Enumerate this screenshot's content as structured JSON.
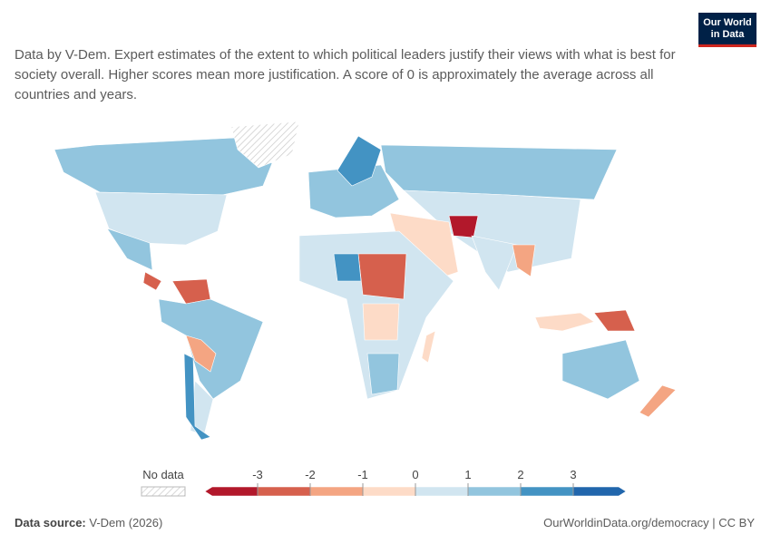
{
  "logo": [
    "Our World",
    "in Data"
  ],
  "subtitle": "Data by V-Dem. Expert estimates of the extent to which political leaders justify their views with what is best for society overall. Higher scores mean more justification. A score of 0 is approximately the average across all countries and years.",
  "legend": {
    "no_data_label": "No data",
    "ticks": [
      -3,
      -2,
      -1,
      0,
      1,
      2,
      3
    ],
    "colors": [
      "#b2182b",
      "#d6604d",
      "#f4a582",
      "#fddbc7",
      "#d1e5f0",
      "#92c5de",
      "#4393c3",
      "#2166ac"
    ]
  },
  "footer": {
    "source_label": "Data source:",
    "source": "V-Dem (2026)",
    "url": "OurWorldinData.org/democracy | CC BY"
  }
}
